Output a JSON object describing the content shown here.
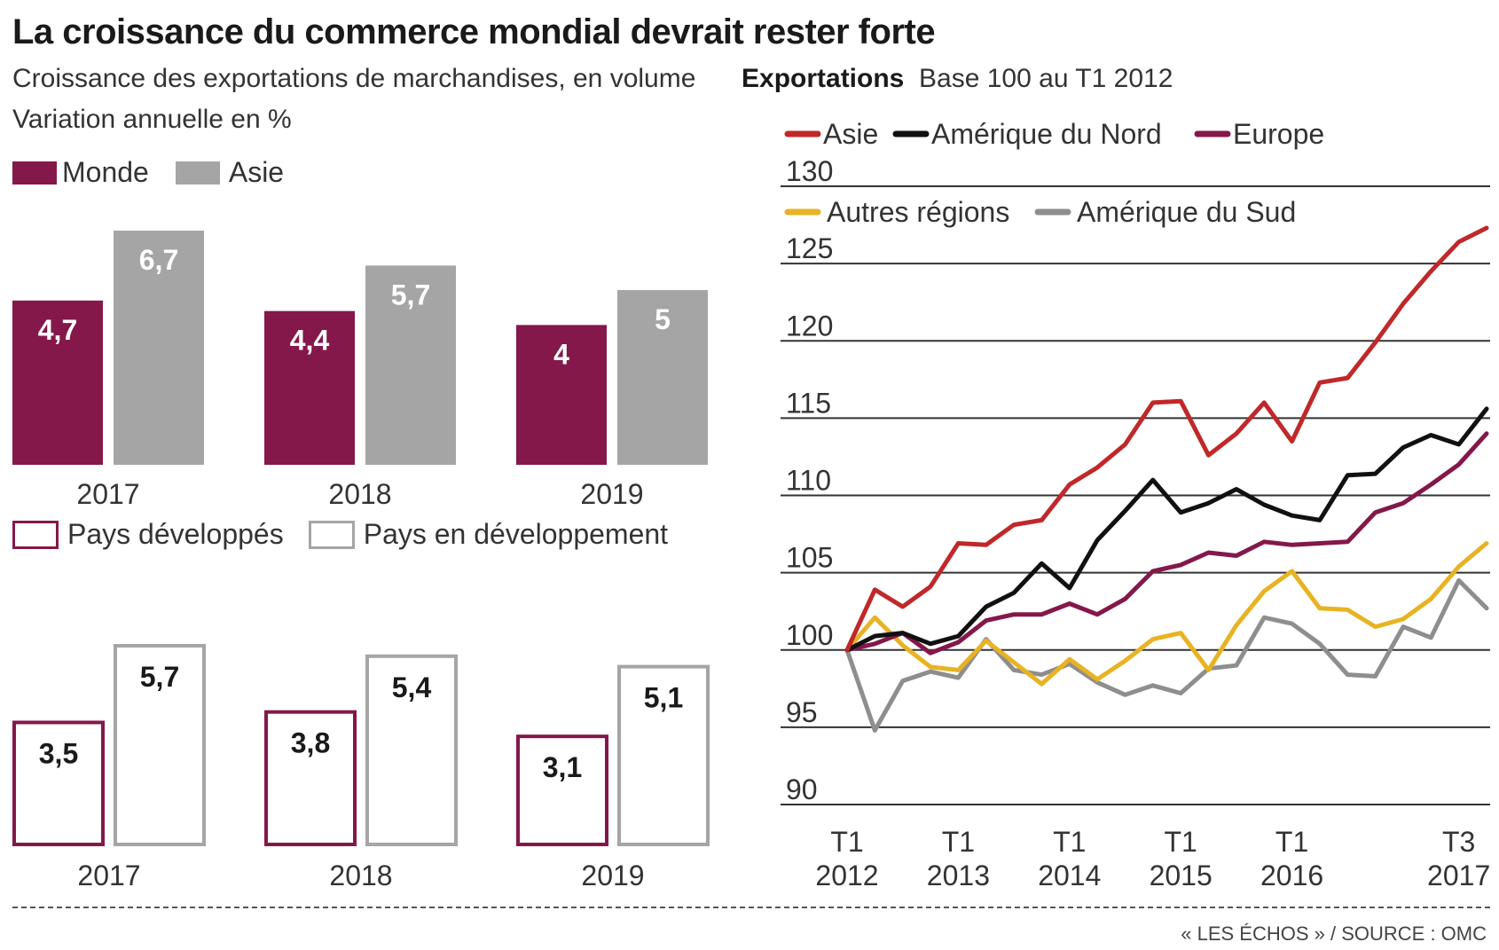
{
  "title": "La croissance du commerce mondial devrait rester forte",
  "left_subtitle": "Croissance des exportations de marchandises, en volume",
  "left_unit": "Variation annuelle en %",
  "right_subtitle_bold": "Exportations",
  "right_subtitle": "Base 100 au T1 2012",
  "source": "« LES ÉCHOS » / SOURCE : OMC",
  "colors": {
    "monde": "#84184a",
    "asie_bar": "#a5a5a5",
    "dev": "#84184a",
    "en_dev": "#a5a5a5",
    "line_asie": "#c0282a",
    "line_amerique_nord": "#111111",
    "line_europe": "#84184a",
    "line_autres": "#e8b323",
    "line_amerique_sud": "#8e8e8e"
  },
  "chart_data": [
    {
      "type": "bar",
      "categories": [
        "2017",
        "2018",
        "2019"
      ],
      "legend": [
        "Monde",
        "Asie"
      ],
      "series": [
        {
          "name": "Monde",
          "values": [
            4.7,
            4.4,
            4.0
          ],
          "labels": [
            "4,7",
            "4,4",
            "4"
          ]
        },
        {
          "name": "Asie",
          "values": [
            6.7,
            5.7,
            5.0
          ],
          "labels": [
            "6,7",
            "5,7",
            "5"
          ]
        }
      ],
      "ylim": [
        0,
        6.7
      ]
    },
    {
      "type": "bar",
      "categories": [
        "2017",
        "2018",
        "2019"
      ],
      "legend": [
        "Pays développés",
        "Pays en développement"
      ],
      "series": [
        {
          "name": "Pays développés",
          "values": [
            3.5,
            3.8,
            3.1
          ],
          "labels": [
            "3,5",
            "3,8",
            "3,1"
          ]
        },
        {
          "name": "Pays en développement",
          "values": [
            5.7,
            5.4,
            5.1
          ],
          "labels": [
            "5,7",
            "5,4",
            "5,1"
          ]
        }
      ],
      "ylim": [
        0,
        5.7
      ]
    },
    {
      "type": "line",
      "yticks": [
        90,
        95,
        100,
        105,
        110,
        115,
        120,
        125,
        130
      ],
      "ylim": [
        90,
        130
      ],
      "grid": true,
      "xticks": [
        {
          "top": "T1",
          "bottom": "2012",
          "idx": 0
        },
        {
          "top": "T1",
          "bottom": "2013",
          "idx": 4
        },
        {
          "top": "T1",
          "bottom": "2014",
          "idx": 8
        },
        {
          "top": "T1",
          "bottom": "2015",
          "idx": 12
        },
        {
          "top": "T1",
          "bottom": "2016",
          "idx": 16
        },
        {
          "top": "T3",
          "bottom": "2017",
          "idx": 22
        }
      ],
      "series": [
        {
          "name": "Asie",
          "color": "#c0282a",
          "values": [
            100,
            103.9,
            102.8,
            104.1,
            106.9,
            106.8,
            108.1,
            108.4,
            110.7,
            111.8,
            113.3,
            116.0,
            116.1,
            112.6,
            114.0,
            116.0,
            113.5,
            117.3,
            117.6,
            119.9,
            122.4,
            124.5,
            126.4,
            127.3
          ]
        },
        {
          "name": "Amérique du Nord",
          "color": "#111111",
          "values": [
            100,
            100.9,
            101.1,
            100.4,
            100.9,
            102.8,
            103.7,
            105.6,
            104.0,
            107.1,
            109.0,
            111.0,
            108.9,
            109.5,
            110.4,
            109.4,
            108.7,
            108.4,
            111.3,
            111.4,
            113.1,
            113.9,
            113.3,
            115.6
          ]
        },
        {
          "name": "Europe",
          "color": "#84184a",
          "values": [
            100,
            100.4,
            101.1,
            99.8,
            100.5,
            101.9,
            102.3,
            102.3,
            103.0,
            102.3,
            103.3,
            105.1,
            105.5,
            106.3,
            106.1,
            107.0,
            106.8,
            106.9,
            107.0,
            108.9,
            109.5,
            110.7,
            112.0,
            114.0
          ]
        },
        {
          "name": "Autres régions",
          "color": "#e8b323",
          "values": [
            100,
            102.1,
            100.3,
            98.9,
            98.7,
            100.6,
            99.2,
            97.8,
            99.4,
            98.1,
            99.3,
            100.7,
            101.1,
            98.7,
            101.6,
            103.8,
            105.1,
            102.7,
            102.6,
            101.5,
            102.0,
            103.3,
            105.4,
            106.9
          ]
        },
        {
          "name": "Amérique du Sud",
          "color": "#8e8e8e",
          "values": [
            100,
            94.8,
            98.0,
            98.6,
            98.2,
            100.7,
            98.7,
            98.4,
            99.1,
            97.9,
            97.1,
            97.7,
            97.2,
            98.8,
            99.0,
            102.1,
            101.7,
            100.4,
            98.4,
            98.3,
            101.5,
            100.8,
            104.5,
            102.7
          ]
        }
      ]
    }
  ]
}
